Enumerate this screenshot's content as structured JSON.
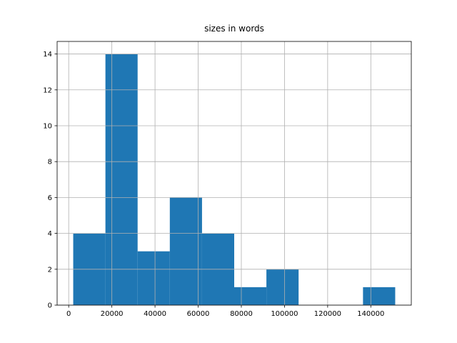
{
  "chart_data": {
    "type": "histogram",
    "title": "sizes in words",
    "bins": [
      2100,
      17020,
      31940,
      46860,
      61780,
      76700,
      91620,
      106540,
      121460,
      136380,
      151300
    ],
    "values": [
      4,
      14,
      3,
      6,
      4,
      1,
      2,
      0,
      0,
      1
    ],
    "color": "#1f77b4",
    "xlim": [
      -5360,
      158760
    ],
    "xticks": [
      0,
      20000,
      40000,
      60000,
      80000,
      100000,
      120000,
      140000
    ],
    "ylim": [
      0,
      14.7
    ],
    "yticks": [
      0,
      2,
      4,
      6,
      8,
      10,
      12,
      14
    ],
    "grid": true
  }
}
